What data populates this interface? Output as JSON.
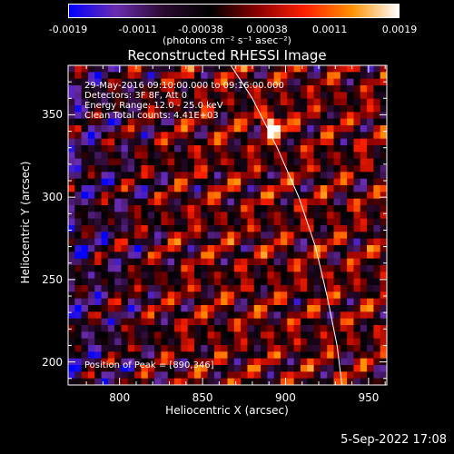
{
  "colorbar": {
    "tick_labels": [
      "-0.0019",
      "-0.0011",
      "-0.00038",
      "0.00038",
      "0.0011",
      "0.0019"
    ],
    "tick_values": [
      -0.0019,
      -0.0011,
      -0.00038,
      0.00038,
      0.0011,
      0.0019
    ],
    "range": [
      -0.0019,
      0.0019
    ],
    "units": "(photons cm⁻² s⁻¹ asec⁻²)",
    "colormap": [
      "#0000ff",
      "#6a2cb0",
      "#2a0a30",
      "#000000",
      "#8a0000",
      "#ff2000",
      "#ff9000",
      "#ffffff"
    ]
  },
  "chart_data": {
    "type": "heatmap",
    "title": "Reconstructed RHESSI Image",
    "xlabel": "Heliocentric X (arcsec)",
    "ylabel": "Heliocentric Y (arcsec)",
    "xlim": [
      769,
      961
    ],
    "ylim": [
      186,
      380
    ],
    "x_ticks": [
      800,
      850,
      900,
      950
    ],
    "y_ticks": [
      200,
      250,
      300,
      350
    ],
    "annotations": [
      "29-May-2016 09:10:00.000 to 09:16:00.000",
      "Detectors: 3F 8F, Att 0",
      "Energy Range: 12.0 - 25.0 keV",
      "Clean     Total counts: 4.41E+03"
    ],
    "peak_label": "Position of Peak = [890,346]",
    "peak": [
      890,
      346
    ],
    "limb_curve": [
      [
        867,
        380
      ],
      [
        880,
        360
      ],
      [
        895,
        330
      ],
      [
        908,
        300
      ],
      [
        918,
        270
      ],
      [
        925,
        240
      ],
      [
        931,
        210
      ],
      [
        934,
        186
      ]
    ],
    "pixel_grid": [
      48,
      48
    ],
    "grid": false
  },
  "footer": {
    "date": "5-Sep-2022 17:08"
  }
}
